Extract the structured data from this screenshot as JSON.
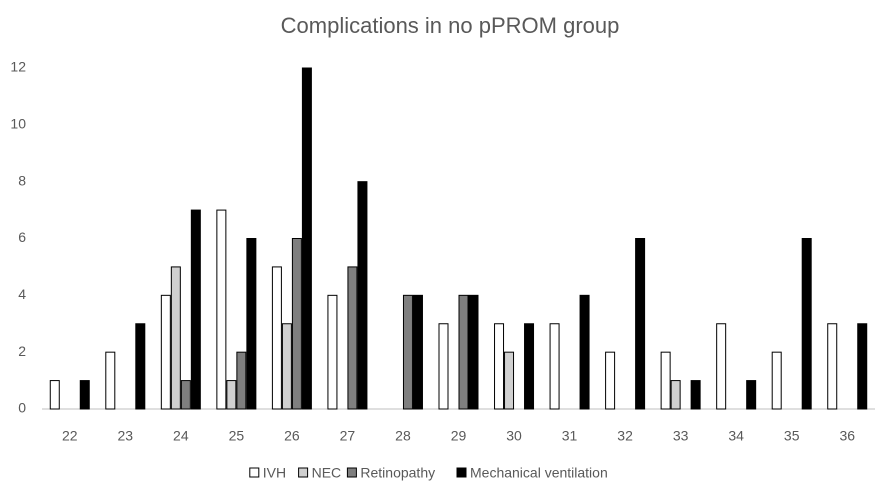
{
  "chart_data": {
    "type": "bar",
    "title": "Complications in no pPROM group",
    "categories": [
      "22",
      "23",
      "24",
      "25",
      "26",
      "27",
      "28",
      "29",
      "30",
      "31",
      "32",
      "33",
      "34",
      "35",
      "36"
    ],
    "series": [
      {
        "name": "IVH",
        "color": "#ffffff",
        "values": [
          1,
          2,
          4,
          7,
          5,
          4,
          0,
          3,
          3,
          3,
          2,
          2,
          3,
          2,
          3
        ]
      },
      {
        "name": "NEC",
        "color": "#d0d0d0",
        "values": [
          0,
          0,
          5,
          1,
          3,
          0,
          0,
          0,
          2,
          0,
          0,
          1,
          0,
          0,
          0
        ]
      },
      {
        "name": "Retinopathy",
        "color": "#7f7f7f",
        "values": [
          0,
          0,
          1,
          2,
          6,
          5,
          4,
          4,
          0,
          0,
          0,
          0,
          0,
          0,
          0
        ]
      },
      {
        "name": "Mechanical ventilation",
        "color": "#000000",
        "values": [
          1,
          3,
          7,
          6,
          12,
          8,
          4,
          4,
          3,
          4,
          6,
          1,
          1,
          6,
          3
        ]
      }
    ],
    "ylim": [
      0,
      12
    ],
    "yticks": [
      0,
      2,
      4,
      6,
      8,
      10,
      12
    ],
    "grid": false,
    "legend": "bottom"
  }
}
